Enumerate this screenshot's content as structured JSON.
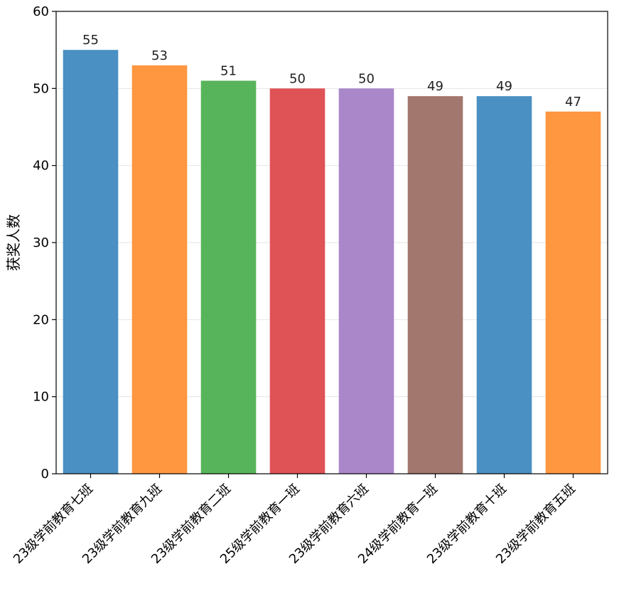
{
  "chart_data": {
    "type": "bar",
    "title": "",
    "xlabel": "",
    "ylabel": "获奖人数",
    "ylim": [
      0,
      60
    ],
    "yticks": [
      0,
      10,
      20,
      30,
      40,
      50,
      60
    ],
    "grid": "horizontal",
    "categories": [
      "23级学前教育七班",
      "23级学前教育九班",
      "23级学前教育二班",
      "25级学前教育一班",
      "23级学前教育六班",
      "24级学前教育一班",
      "23级学前教育十班",
      "23级学前教育五班"
    ],
    "values": [
      55,
      53,
      51,
      50,
      50,
      49,
      49,
      47
    ],
    "colors": [
      "#4a90c2",
      "#ff9640",
      "#58b45a",
      "#df5256",
      "#a987c9",
      "#a2776d",
      "#4a90c2",
      "#ff9640"
    ]
  }
}
